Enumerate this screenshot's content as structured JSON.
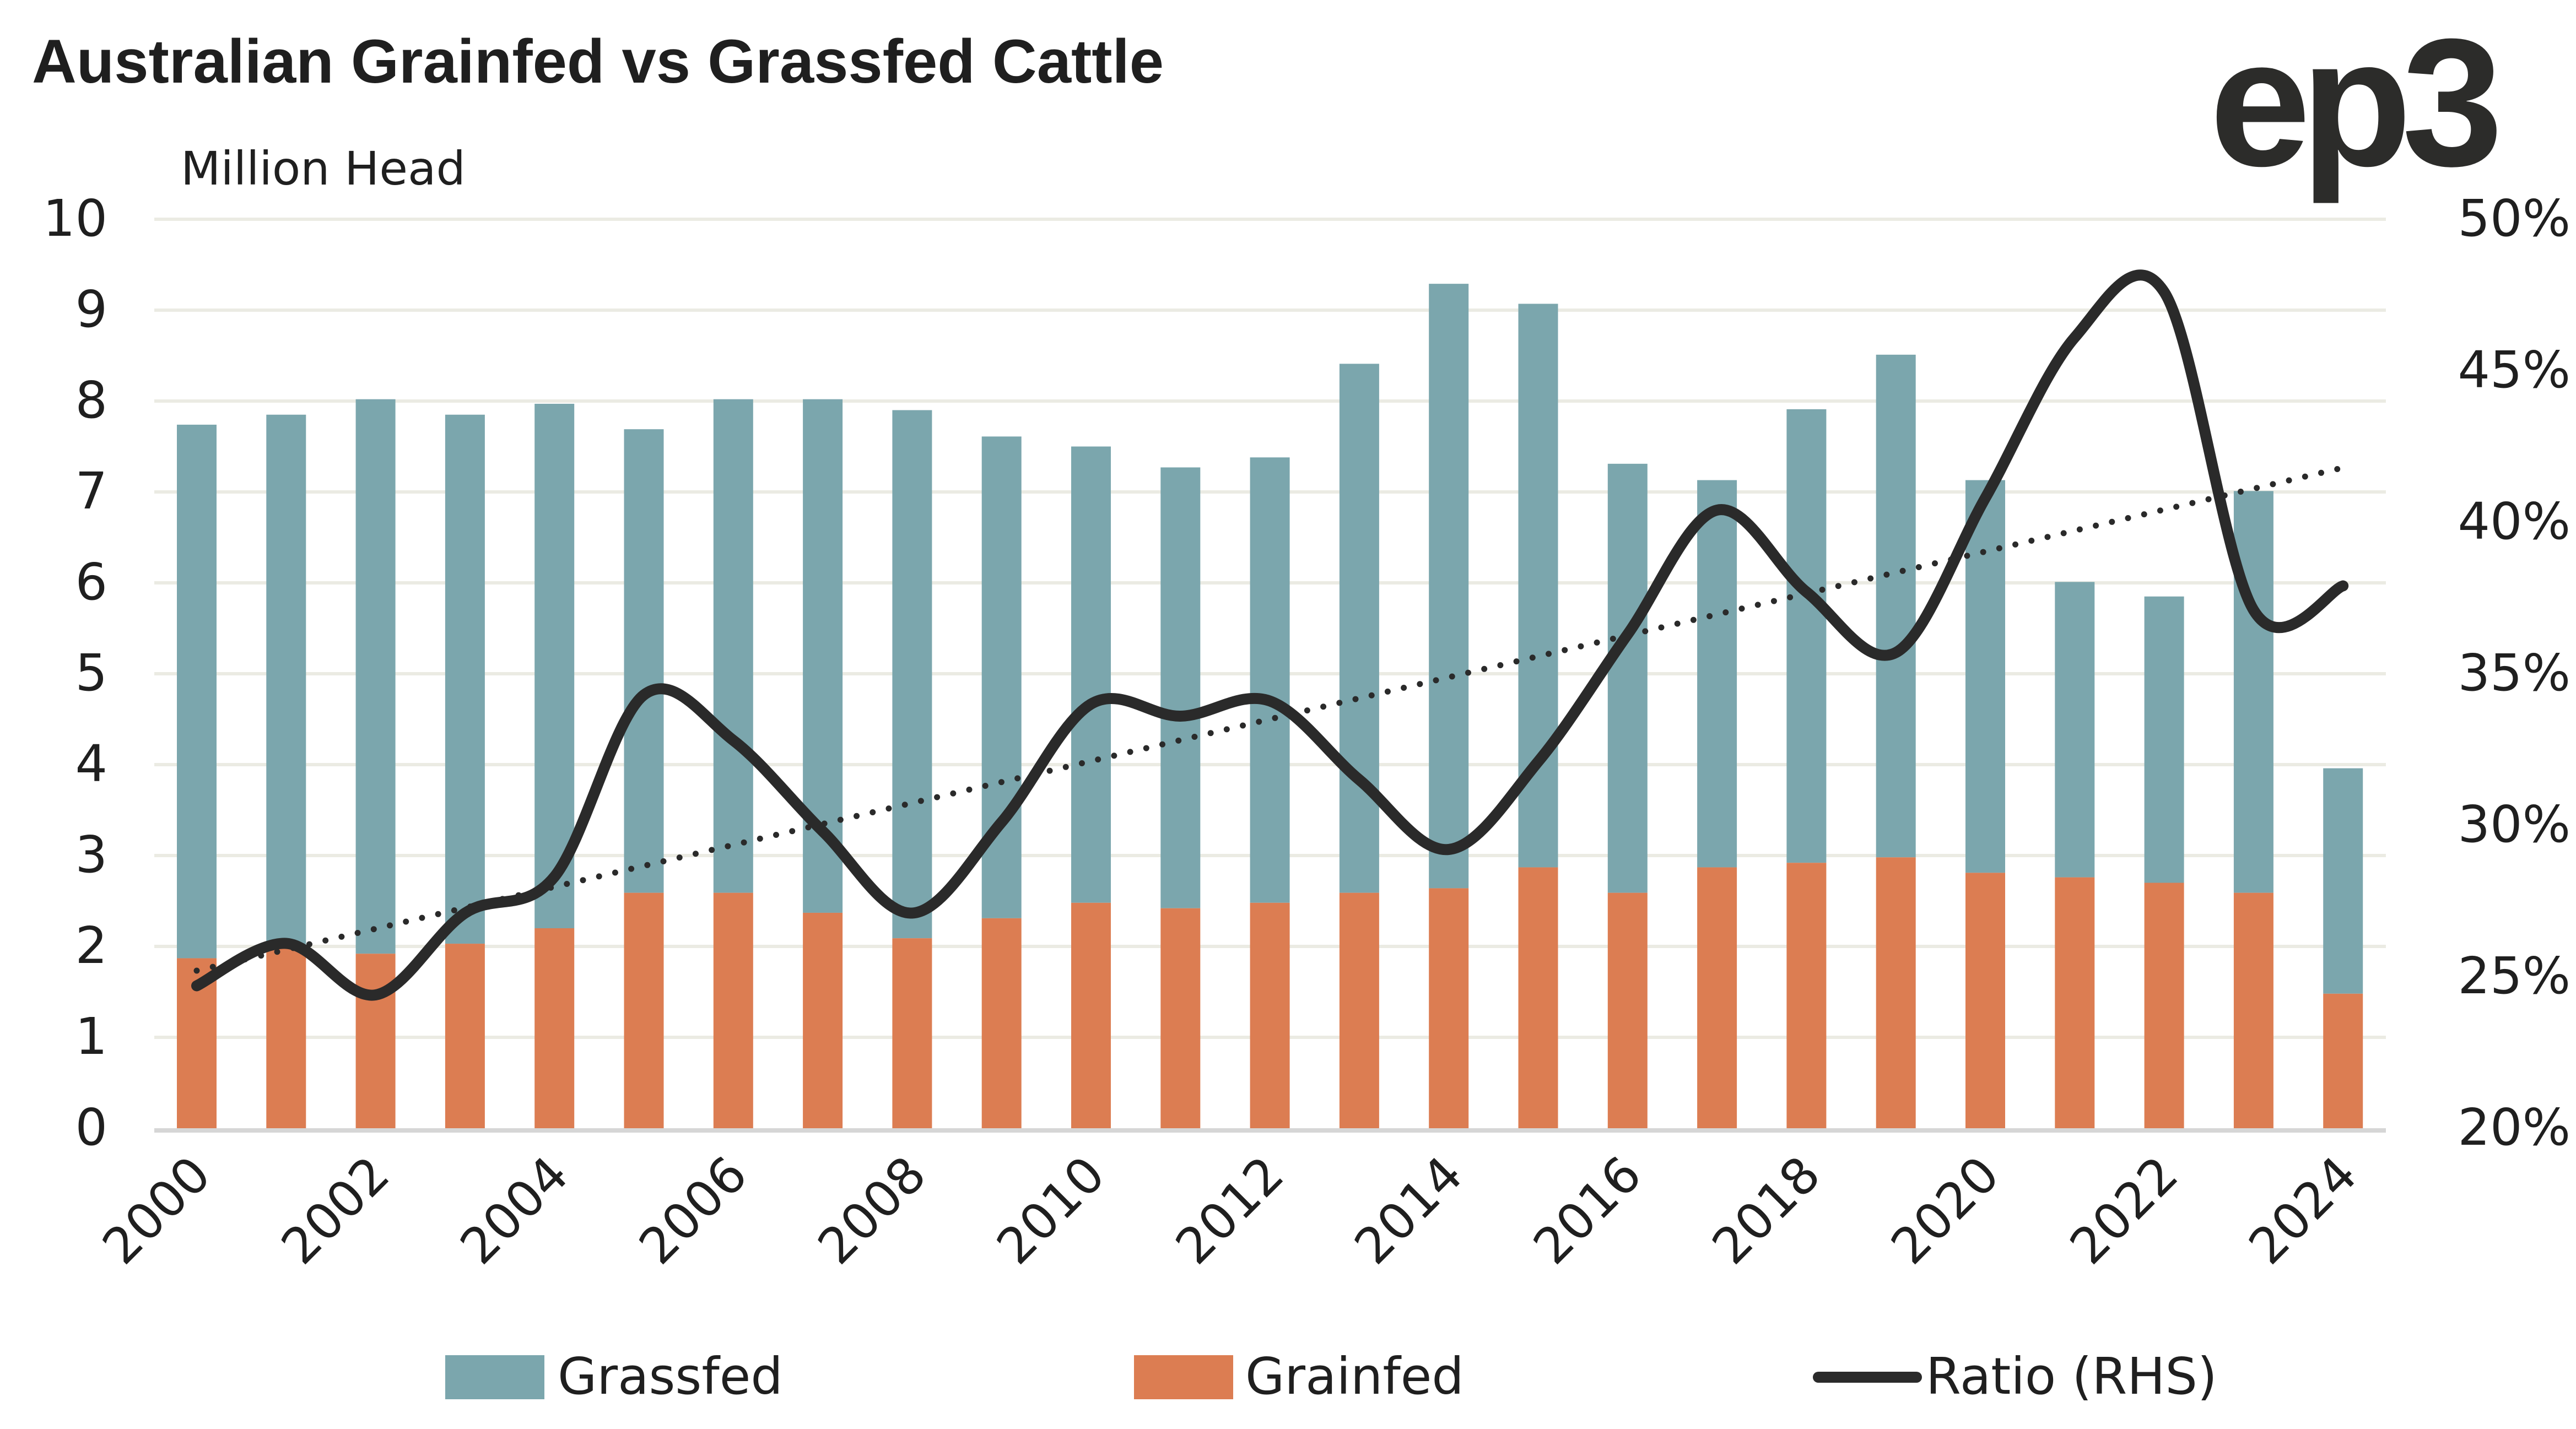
{
  "header": {
    "title": "Australian Grainfed vs Grassfed Cattle",
    "logo_text": "ep3"
  },
  "chart_data": {
    "type": "bar",
    "stacked": true,
    "title": "Australian Grainfed vs Grassfed Cattle",
    "ylabel": "Million Head",
    "ylabel_right": "Ratio (RHS)",
    "ylim": [
      0,
      10
    ],
    "yticks": [
      "0",
      "1",
      "2",
      "3",
      "4",
      "5",
      "6",
      "7",
      "8",
      "9",
      "10"
    ],
    "ylim_right": [
      0.2,
      0.5
    ],
    "yticks_right": [
      "20%",
      "25%",
      "30%",
      "35%",
      "40%",
      "45%",
      "50%"
    ],
    "grid": true,
    "categories": [
      "2000",
      "2001",
      "2002",
      "2003",
      "2004",
      "2005",
      "2006",
      "2007",
      "2008",
      "2009",
      "2010",
      "2011",
      "2012",
      "2013",
      "2014",
      "2015",
      "2016",
      "2017",
      "2018",
      "2019",
      "2020",
      "2021",
      "2022",
      "2023",
      "2024"
    ],
    "xtick_labels": [
      "2000",
      "2002",
      "2004",
      "2006",
      "2008",
      "2010",
      "2012",
      "2014",
      "2016",
      "2018",
      "2020",
      "2022",
      "2024"
    ],
    "series": [
      {
        "name": "Grainfed",
        "type": "bar",
        "axis": "left",
        "color": "#dc7d52",
        "values": [
          1.87,
          2.0,
          1.92,
          2.03,
          2.2,
          2.59,
          2.59,
          2.37,
          2.09,
          2.31,
          2.48,
          2.42,
          2.48,
          2.59,
          2.64,
          2.87,
          2.59,
          2.87,
          2.92,
          2.98,
          2.81,
          2.76,
          2.7,
          2.59,
          1.48
        ]
      },
      {
        "name": "Grassfed",
        "type": "bar",
        "axis": "left",
        "color": "#7ba6ad",
        "values": [
          5.87,
          5.85,
          6.1,
          5.82,
          5.77,
          5.1,
          5.43,
          5.65,
          5.81,
          5.3,
          5.02,
          4.85,
          4.9,
          5.82,
          6.65,
          6.2,
          4.72,
          4.26,
          4.99,
          5.53,
          4.32,
          3.25,
          3.15,
          4.42,
          2.48
        ]
      },
      {
        "name": "Ratio (RHS)",
        "type": "line",
        "axis": "right",
        "smooth": true,
        "color": "#2a2a2a",
        "values": [
          0.247,
          0.261,
          0.244,
          0.271,
          0.283,
          0.343,
          0.328,
          0.298,
          0.271,
          0.301,
          0.34,
          0.336,
          0.341,
          0.315,
          0.292,
          0.321,
          0.363,
          0.404,
          0.377,
          0.357,
          0.408,
          0.461,
          0.476,
          0.371,
          0.379
        ]
      },
      {
        "name": "Ratio trend",
        "type": "line",
        "axis": "right",
        "style": "dotted",
        "color": "#2a2a2a",
        "values": [
          0.252,
          0.418
        ],
        "x": [
          "2000",
          "2024"
        ]
      }
    ],
    "legend": {
      "position": "bottom",
      "items": [
        {
          "label": "Grassfed",
          "color": "#7ba6ad",
          "marker": "square"
        },
        {
          "label": "Grainfed",
          "color": "#dc7d52",
          "marker": "square"
        },
        {
          "label": "Ratio (RHS)",
          "color": "#2a2a2a",
          "marker": "line"
        }
      ]
    },
    "gridline_color": "#ebebe3",
    "axis_line_color": "#d6d6d6"
  }
}
